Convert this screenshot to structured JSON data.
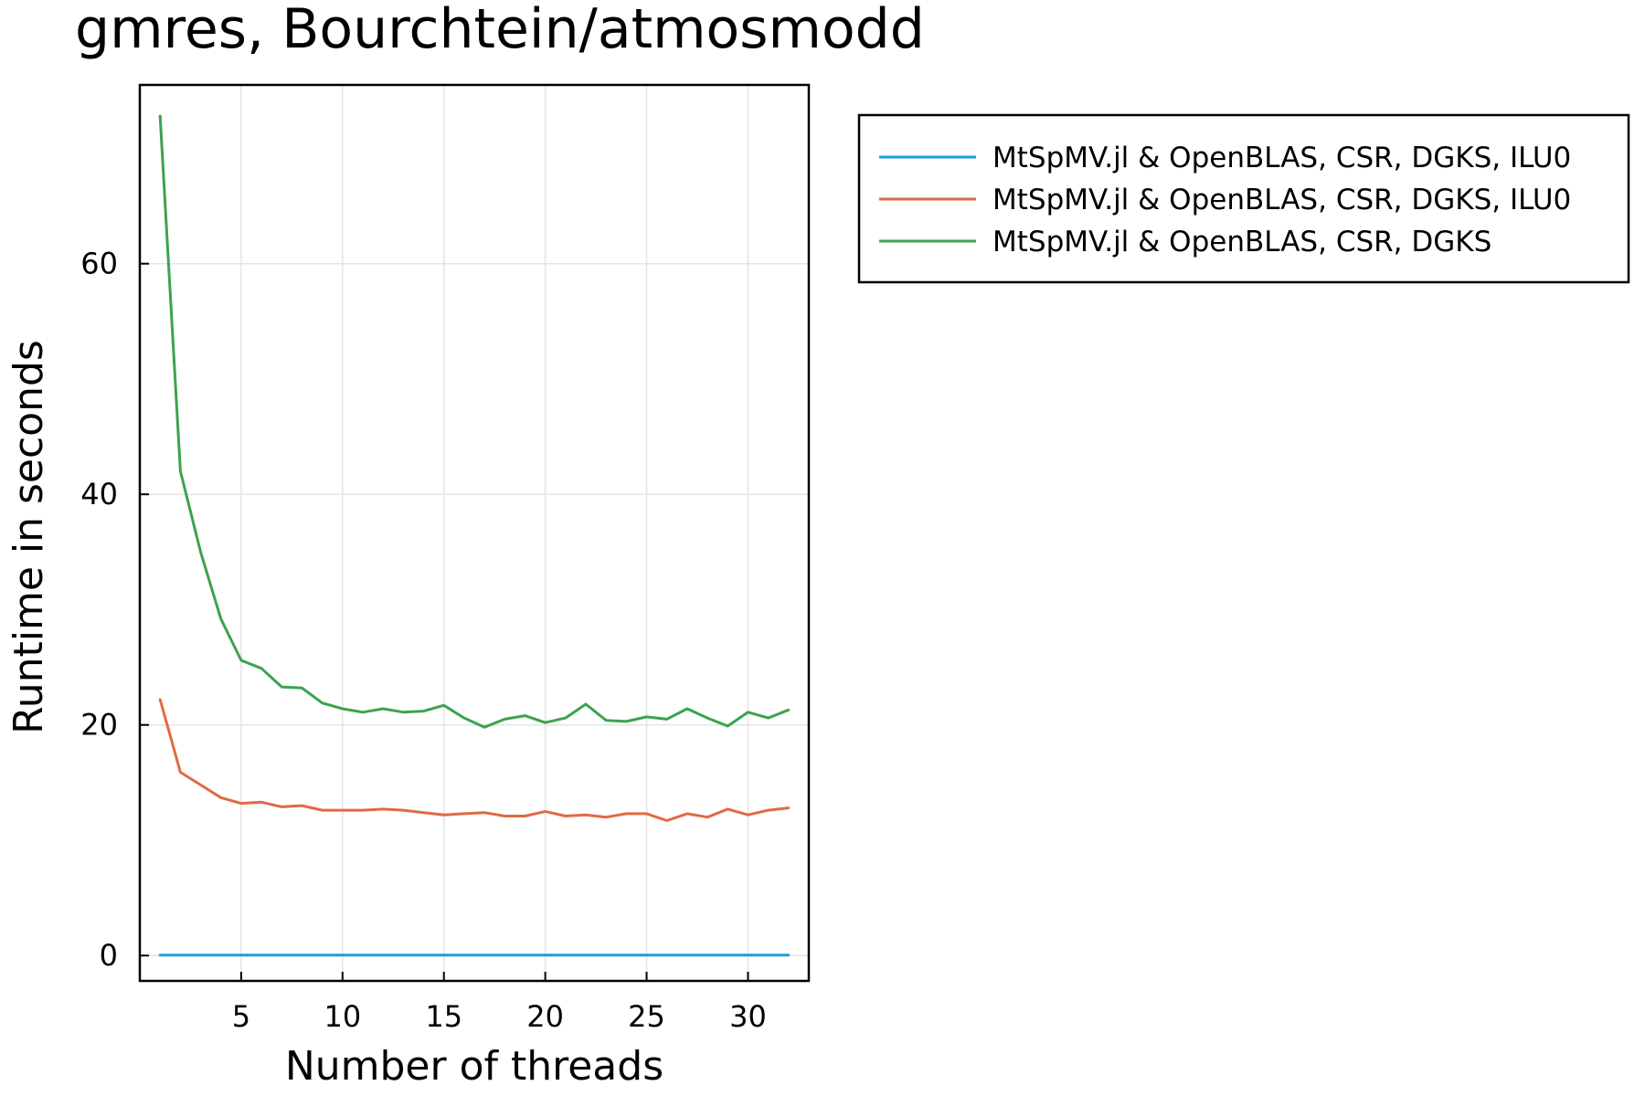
{
  "chart_data": {
    "type": "line",
    "title": "gmres, Bourchtein/atmosmodd",
    "xlabel": "Number of threads",
    "ylabel": "Runtime in seconds",
    "xlim": [
      0,
      33
    ],
    "ylim": [
      -2.2,
      75.5
    ],
    "x_ticks": [
      5,
      10,
      15,
      20,
      25,
      30
    ],
    "y_ticks": [
      0,
      20,
      40,
      60
    ],
    "grid": true,
    "legend_position": "outside-top-right",
    "x": [
      1,
      2,
      3,
      4,
      5,
      6,
      7,
      8,
      9,
      10,
      11,
      12,
      13,
      14,
      15,
      16,
      17,
      18,
      19,
      20,
      21,
      22,
      23,
      24,
      25,
      26,
      27,
      28,
      29,
      30,
      31,
      32
    ],
    "series": [
      {
        "name": "MtSpMV.jl & OpenBLAS, CSR, DGKS, ILU0",
        "color": "#1f9ae0",
        "values": [
          0.04,
          0.04,
          0.04,
          0.04,
          0.04,
          0.04,
          0.04,
          0.04,
          0.04,
          0.04,
          0.04,
          0.04,
          0.04,
          0.04,
          0.04,
          0.04,
          0.04,
          0.04,
          0.04,
          0.04,
          0.04,
          0.04,
          0.04,
          0.04,
          0.04,
          0.04,
          0.04,
          0.04,
          0.04,
          0.04,
          0.04,
          0.04
        ]
      },
      {
        "name": "MtSpMV.jl & OpenBLAS, CSR, DGKS, ILU0",
        "color": "#e06a45",
        "values": [
          22.2,
          15.9,
          14.8,
          13.7,
          13.2,
          13.3,
          12.9,
          13.0,
          12.6,
          12.6,
          12.6,
          12.7,
          12.6,
          12.4,
          12.2,
          12.3,
          12.4,
          12.1,
          12.1,
          12.5,
          12.1,
          12.2,
          12.0,
          12.3,
          12.3,
          11.7,
          12.3,
          12.0,
          12.7,
          12.2,
          12.6,
          12.8
        ]
      },
      {
        "name": "MtSpMV.jl & OpenBLAS, CSR, DGKS",
        "color": "#3ba34f",
        "values": [
          72.8,
          42.0,
          35.0,
          29.2,
          25.6,
          24.9,
          23.3,
          23.2,
          21.9,
          21.4,
          21.1,
          21.4,
          21.1,
          21.2,
          21.7,
          20.6,
          19.8,
          20.5,
          20.8,
          20.2,
          20.6,
          21.8,
          20.4,
          20.3,
          20.7,
          20.5,
          21.4,
          20.6,
          19.9,
          21.1,
          20.6,
          21.3
        ]
      }
    ]
  }
}
